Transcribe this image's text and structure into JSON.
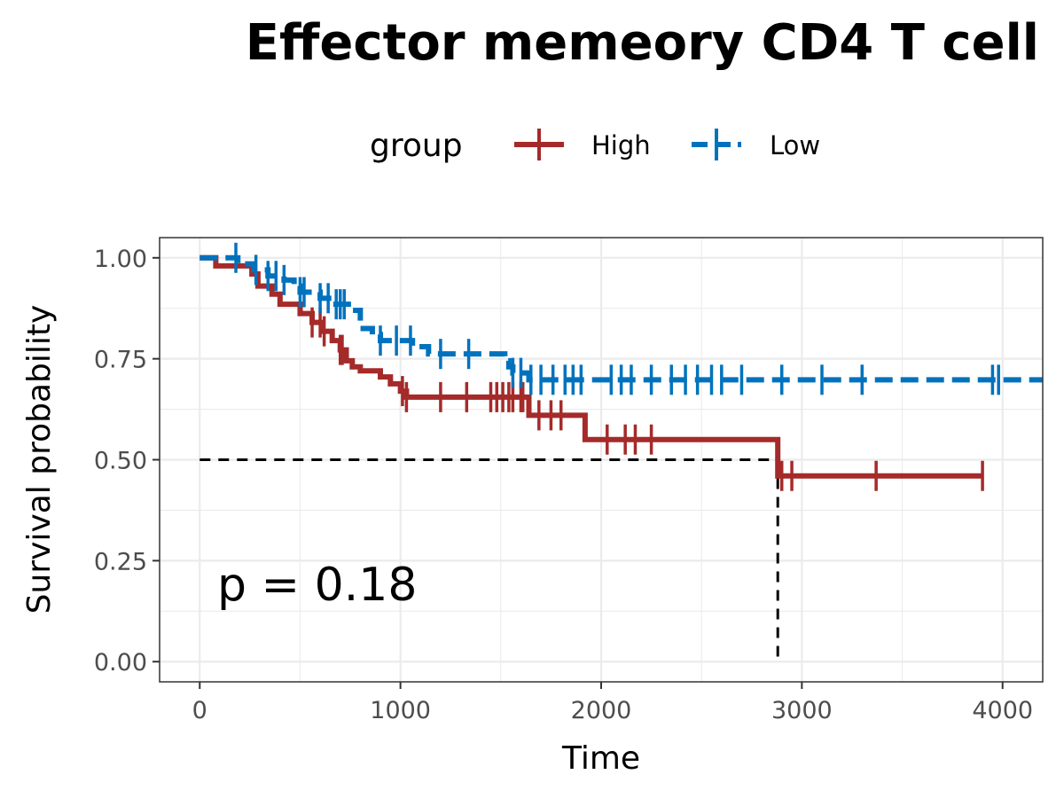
{
  "chart_data": {
    "type": "line",
    "subtype": "kaplan-meier",
    "title": "Effector memeory CD4 T cell",
    "xlabel": "Time",
    "ylabel": "Survival probability",
    "xlim": [
      -200,
      4200
    ],
    "ylim": [
      -0.05,
      1.05
    ],
    "x_ticks": [
      0,
      1000,
      2000,
      3000,
      4000
    ],
    "x_tick_labels": [
      "0",
      "1000",
      "2000",
      "3000",
      "4000"
    ],
    "y_ticks": [
      0,
      0.25,
      0.5,
      0.75,
      1.0
    ],
    "y_tick_labels": [
      "0.00",
      "0.25",
      "0.50",
      "0.75",
      "1.00"
    ],
    "grid": true,
    "legend": {
      "title": "group",
      "position": "top"
    },
    "annotation": "p = 0.18",
    "median_line": {
      "y": 0.5,
      "x": 2880,
      "color": "#000000"
    },
    "series": [
      {
        "name": "High",
        "color": "#A52A2A",
        "linestyle": "solid",
        "steps": [
          [
            0,
            1.0
          ],
          [
            80,
            0.98
          ],
          [
            260,
            0.96
          ],
          [
            290,
            0.93
          ],
          [
            360,
            0.91
          ],
          [
            400,
            0.885
          ],
          [
            500,
            0.862
          ],
          [
            560,
            0.84
          ],
          [
            610,
            0.818
          ],
          [
            660,
            0.795
          ],
          [
            700,
            0.772
          ],
          [
            730,
            0.745
          ],
          [
            760,
            0.73
          ],
          [
            800,
            0.72
          ],
          [
            900,
            0.705
          ],
          [
            950,
            0.688
          ],
          [
            1000,
            0.67
          ],
          [
            1030,
            0.655
          ],
          [
            1640,
            0.61
          ],
          [
            1920,
            0.55
          ],
          [
            2880,
            0.46
          ],
          [
            3900,
            0.46
          ]
        ],
        "censor_x": [
          560,
          600,
          620,
          700,
          710,
          1010,
          1030,
          1200,
          1330,
          1450,
          1480,
          1510,
          1540,
          1560,
          1600,
          1610,
          1690,
          1750,
          1800,
          2030,
          2120,
          2170,
          2250,
          2900,
          2950,
          3370,
          3900
        ]
      },
      {
        "name": "Low",
        "color": "#0072BD",
        "linestyle": "dashed",
        "steps": [
          [
            0,
            1.0
          ],
          [
            190,
            0.985
          ],
          [
            270,
            0.97
          ],
          [
            340,
            0.955
          ],
          [
            420,
            0.945
          ],
          [
            470,
            0.93
          ],
          [
            500,
            0.915
          ],
          [
            600,
            0.9
          ],
          [
            660,
            0.885
          ],
          [
            760,
            0.87
          ],
          [
            800,
            0.825
          ],
          [
            860,
            0.81
          ],
          [
            900,
            0.795
          ],
          [
            1060,
            0.78
          ],
          [
            1140,
            0.762
          ],
          [
            1520,
            0.745
          ],
          [
            1540,
            0.73
          ],
          [
            1560,
            0.715
          ],
          [
            1640,
            0.698
          ],
          [
            4200,
            0.698
          ]
        ],
        "censor_x": [
          180,
          280,
          340,
          380,
          420,
          500,
          520,
          600,
          640,
          680,
          700,
          720,
          900,
          980,
          1050,
          1200,
          1340,
          1560,
          1600,
          1650,
          1700,
          1760,
          1820,
          1860,
          1900,
          2050,
          2100,
          2150,
          2250,
          2350,
          2420,
          2480,
          2550,
          2600,
          2700,
          2900,
          3100,
          3300,
          3950,
          3980
        ]
      }
    ]
  }
}
